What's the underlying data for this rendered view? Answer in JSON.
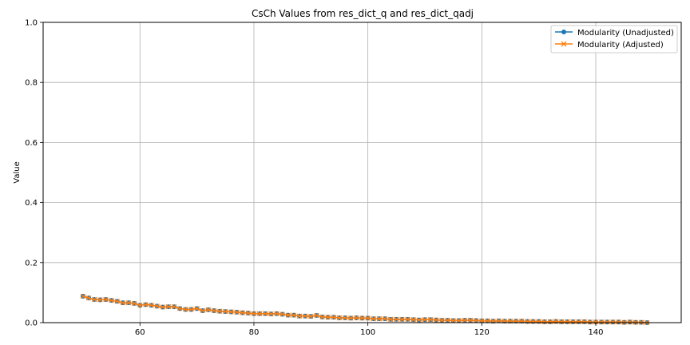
{
  "chart_data": {
    "type": "line",
    "title": "CsCh Values from res_dict_q and res_dict_qadj",
    "xlabel": "",
    "ylabel": "Value",
    "xlim": [
      43,
      155
    ],
    "ylim": [
      0,
      1.0
    ],
    "xticks": [
      60,
      80,
      100,
      120,
      140
    ],
    "yticks": [
      0.0,
      0.2,
      0.4,
      0.6,
      0.8,
      1.0
    ],
    "ytick_labels": [
      "0.0",
      "0.2",
      "0.4",
      "0.6",
      "0.8",
      "1.0"
    ],
    "grid": true,
    "legend_position": "top-right",
    "series": [
      {
        "name": "Modularity (Unadjusted)",
        "color": "#1f77b4",
        "marker": "circle",
        "x": [
          50,
          51,
          52,
          53,
          54,
          55,
          56,
          57,
          58,
          59,
          60,
          61,
          62,
          63,
          64,
          65,
          66,
          67,
          68,
          69,
          70,
          71,
          72,
          73,
          74,
          75,
          76,
          77,
          78,
          79,
          80,
          81,
          82,
          83,
          84,
          85,
          86,
          87,
          88,
          89,
          90,
          91,
          92,
          93,
          94,
          95,
          96,
          97,
          98,
          99,
          100,
          101,
          102,
          103,
          104,
          105,
          106,
          107,
          108,
          109,
          110,
          111,
          112,
          113,
          114,
          115,
          116,
          117,
          118,
          119,
          120,
          121,
          122,
          123,
          124,
          125,
          126,
          127,
          128,
          129,
          130,
          131,
          132,
          133,
          134,
          135,
          136,
          137,
          138,
          139,
          140,
          141,
          142,
          143,
          144,
          145,
          146,
          147,
          148,
          149
        ],
        "y": [
          0.088,
          0.082,
          0.077,
          0.076,
          0.077,
          0.074,
          0.071,
          0.066,
          0.066,
          0.064,
          0.058,
          0.06,
          0.058,
          0.055,
          0.052,
          0.053,
          0.053,
          0.047,
          0.044,
          0.044,
          0.047,
          0.04,
          0.043,
          0.04,
          0.038,
          0.037,
          0.036,
          0.035,
          0.033,
          0.032,
          0.03,
          0.03,
          0.03,
          0.029,
          0.03,
          0.028,
          0.025,
          0.025,
          0.022,
          0.022,
          0.021,
          0.024,
          0.019,
          0.018,
          0.018,
          0.016,
          0.016,
          0.015,
          0.016,
          0.015,
          0.015,
          0.013,
          0.013,
          0.013,
          0.011,
          0.011,
          0.011,
          0.011,
          0.01,
          0.009,
          0.01,
          0.01,
          0.009,
          0.008,
          0.008,
          0.007,
          0.007,
          0.008,
          0.008,
          0.007,
          0.006,
          0.006,
          0.005,
          0.006,
          0.005,
          0.005,
          0.005,
          0.005,
          0.004,
          0.004,
          0.004,
          0.003,
          0.003,
          0.004,
          0.003,
          0.003,
          0.003,
          0.003,
          0.003,
          0.002,
          0.002,
          0.002,
          0.002,
          0.002,
          0.002,
          0.001,
          0.002,
          0.001,
          0.001,
          0.0
        ]
      },
      {
        "name": "Modularity (Adjusted)",
        "color": "#ff7f0e",
        "marker": "x",
        "x": [
          50,
          51,
          52,
          53,
          54,
          55,
          56,
          57,
          58,
          59,
          60,
          61,
          62,
          63,
          64,
          65,
          66,
          67,
          68,
          69,
          70,
          71,
          72,
          73,
          74,
          75,
          76,
          77,
          78,
          79,
          80,
          81,
          82,
          83,
          84,
          85,
          86,
          87,
          88,
          89,
          90,
          91,
          92,
          93,
          94,
          95,
          96,
          97,
          98,
          99,
          100,
          101,
          102,
          103,
          104,
          105,
          106,
          107,
          108,
          109,
          110,
          111,
          112,
          113,
          114,
          115,
          116,
          117,
          118,
          119,
          120,
          121,
          122,
          123,
          124,
          125,
          126,
          127,
          128,
          129,
          130,
          131,
          132,
          133,
          134,
          135,
          136,
          137,
          138,
          139,
          140,
          141,
          142,
          143,
          144,
          145,
          146,
          147,
          148,
          149
        ],
        "y": [
          0.088,
          0.082,
          0.077,
          0.076,
          0.077,
          0.074,
          0.071,
          0.066,
          0.066,
          0.064,
          0.058,
          0.06,
          0.058,
          0.055,
          0.052,
          0.053,
          0.053,
          0.047,
          0.044,
          0.044,
          0.047,
          0.04,
          0.043,
          0.04,
          0.038,
          0.037,
          0.036,
          0.035,
          0.033,
          0.032,
          0.03,
          0.03,
          0.03,
          0.029,
          0.03,
          0.028,
          0.025,
          0.025,
          0.022,
          0.022,
          0.021,
          0.024,
          0.019,
          0.018,
          0.018,
          0.016,
          0.016,
          0.015,
          0.016,
          0.015,
          0.015,
          0.013,
          0.013,
          0.013,
          0.011,
          0.011,
          0.011,
          0.011,
          0.01,
          0.009,
          0.01,
          0.01,
          0.009,
          0.008,
          0.008,
          0.007,
          0.007,
          0.008,
          0.008,
          0.007,
          0.006,
          0.006,
          0.005,
          0.006,
          0.005,
          0.005,
          0.005,
          0.005,
          0.004,
          0.004,
          0.004,
          0.003,
          0.003,
          0.004,
          0.003,
          0.003,
          0.003,
          0.003,
          0.003,
          0.002,
          0.002,
          0.002,
          0.002,
          0.002,
          0.002,
          0.001,
          0.002,
          0.001,
          0.001,
          0.0
        ]
      }
    ]
  }
}
